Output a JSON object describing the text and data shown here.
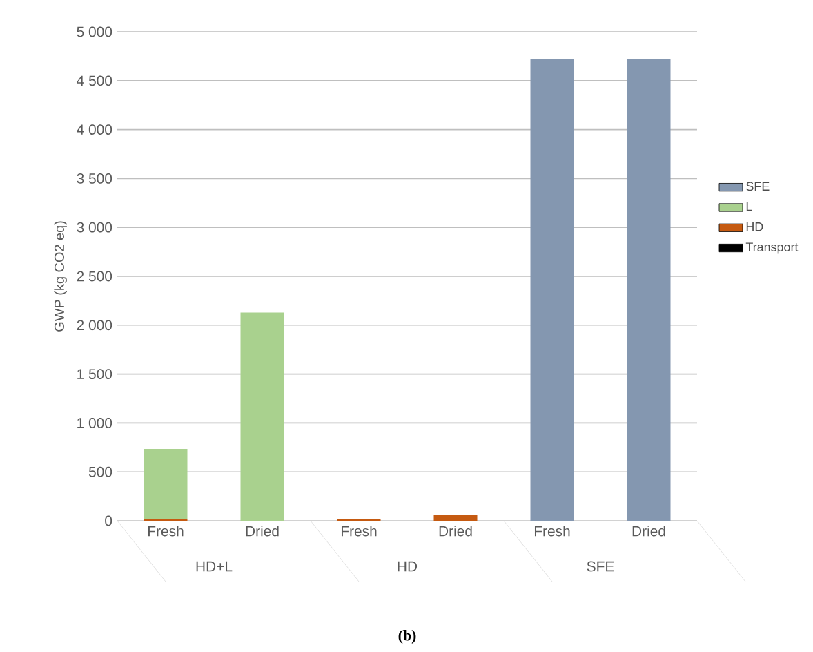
{
  "chart_data": {
    "type": "bar",
    "stacked": true,
    "ylabel": "GWP (kg CO2 eq)",
    "categories": [
      "Fresh",
      "Dried",
      "Fresh",
      "Dried",
      "Fresh",
      "Dried"
    ],
    "series": [
      {
        "name": "Transport",
        "color": "#000000",
        "values": [
          null,
          null,
          null,
          null,
          null,
          null
        ]
      },
      {
        "name": "HD",
        "color": "#c55a11",
        "values": [
          15,
          null,
          15,
          60,
          null,
          null
        ]
      },
      {
        "name": "L",
        "color": "#a9d18e",
        "values": [
          720,
          2130,
          null,
          null,
          null,
          null
        ]
      },
      {
        "name": "SFE",
        "color": "#8497b0",
        "values": [
          null,
          null,
          null,
          null,
          4720,
          4720
        ]
      }
    ],
    "ylim": [
      0,
      5000
    ],
    "yticks": [
      0,
      500,
      {
        "value": 1000,
        "label": "1 000"
      },
      {
        "value": 1500,
        "label": "1 500"
      },
      {
        "value": 2000,
        "label": "2 000"
      },
      {
        "value": 2500,
        "label": "2 500"
      },
      {
        "value": 3000,
        "label": "3 000"
      },
      {
        "value": 3500,
        "label": "3 500"
      },
      {
        "value": 4000,
        "label": "4 000"
      },
      {
        "value": 4500,
        "label": "4 500"
      },
      {
        "value": 5000,
        "label": "5 000"
      }
    ],
    "grid": "y",
    "legend": "right",
    "annotations": [
      "HD+L",
      "HD",
      "SFE",
      "(b)"
    ]
  }
}
